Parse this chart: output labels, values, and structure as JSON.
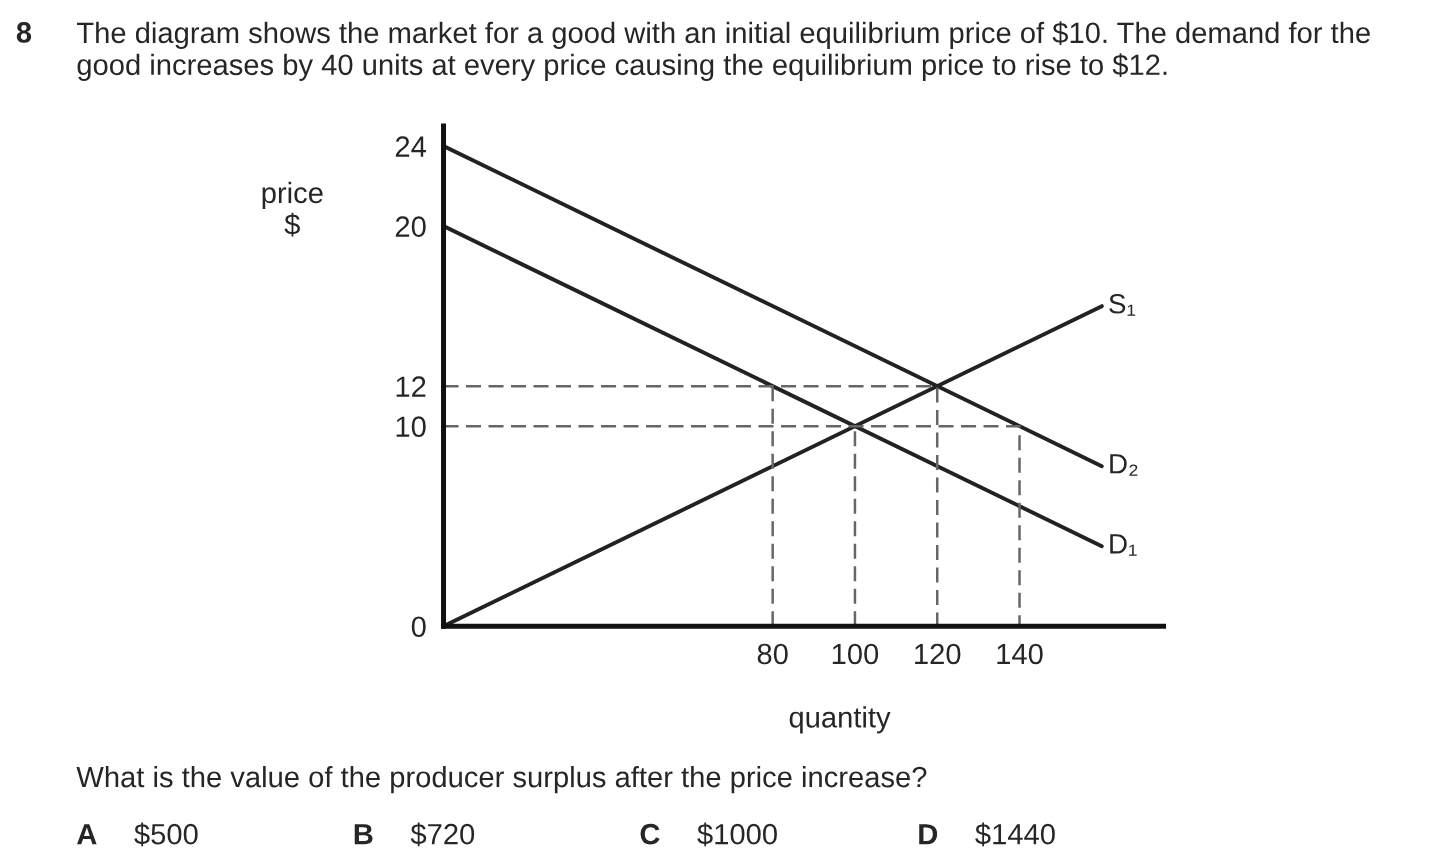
{
  "chart_data": {
    "type": "line",
    "title": "The diagram shows the market for a good with an initial equilibrium price of $10. The demand for the good increases by 40 units at every price causing the equilibrium price to rise to $12.",
    "xlabel": "quantity",
    "ylabel": "price\n$",
    "annotations": [
      "8",
      "What is the value of the producer surplus after the price increase?",
      "A",
      "$500",
      "B",
      "$720",
      "C",
      "$1000",
      "D",
      "$1440"
    ],
    "series": [
      {
        "name": "S₁",
        "color": "#222222",
        "line_style": "solid",
        "x": [
          0,
          160
        ],
        "values": [
          0,
          16
        ]
      },
      {
        "name": "D₂",
        "color": "#222222",
        "line_style": "solid",
        "x": [
          0,
          160
        ],
        "values": [
          24,
          8
        ]
      },
      {
        "name": "D₁",
        "color": "#222222",
        "line_style": "solid",
        "x": [
          0,
          160
        ],
        "values": [
          20,
          4
        ]
      },
      {
        "color": "#666666",
        "line_style": "dashed",
        "x": [
          0,
          140,
          140
        ],
        "values": [
          10,
          10,
          0
        ]
      },
      {
        "color": "#666666",
        "line_style": "dashed",
        "x": [
          0,
          120,
          120
        ],
        "values": [
          12,
          12,
          0
        ]
      },
      {
        "color": "#666666",
        "line_style": "dashed",
        "x": [
          80,
          80
        ],
        "values": [
          0,
          12
        ]
      },
      {
        "color": "#666666",
        "line_style": "dashed",
        "x": [
          100,
          100
        ],
        "values": [
          0,
          10
        ]
      }
    ],
    "xlim": [
      0,
      175
    ],
    "ylim": [
      0,
      25
    ],
    "xticks": [
      80,
      100,
      120,
      140
    ],
    "yticks": [
      0,
      10,
      12,
      20,
      24
    ],
    "grid": false,
    "legend": false,
    "marker": "none"
  }
}
